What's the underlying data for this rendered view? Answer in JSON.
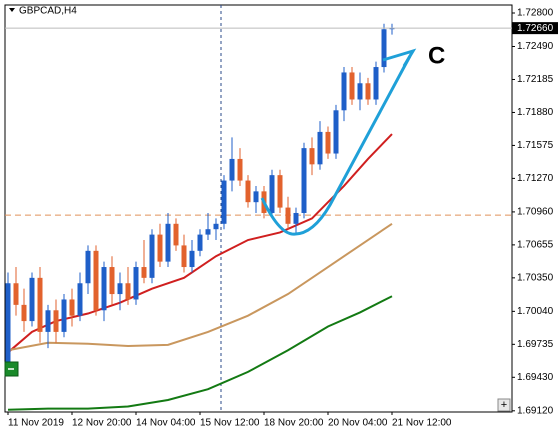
{
  "chart_data": {
    "type": "candlestick",
    "title": "GBPCAD,H4",
    "categories": [
      "11 Nov 2019",
      null,
      null,
      null,
      null,
      null,
      null,
      null,
      "12 Nov 20:00",
      null,
      null,
      null,
      null,
      null,
      null,
      null,
      "14 Nov 04:00",
      null,
      null,
      null,
      null,
      null,
      null,
      null,
      "15 Nov 12:00",
      null,
      null,
      null,
      null,
      null,
      null,
      null,
      "18 Nov 20:00",
      null,
      null,
      null,
      null,
      null,
      null,
      null,
      "20 Nov 04:00",
      null,
      null,
      null,
      null,
      null,
      null,
      null,
      "21 Nov 12:00"
    ],
    "open": [
      1.6955,
      1.703,
      1.701,
      1.6995,
      1.7035,
      1.6985,
      1.7005,
      1.6985,
      1.7015,
      1.7,
      1.703,
      1.706,
      1.7005,
      1.7045,
      1.702,
      1.703,
      1.7015,
      1.7045,
      1.7035,
      1.7075,
      1.705,
      1.7085,
      1.7065,
      1.7045,
      1.706,
      1.7075,
      1.708,
      1.7085,
      1.7125,
      1.7145,
      1.7125,
      1.7105,
      1.7115,
      1.7095,
      1.713,
      1.71,
      1.7085,
      1.7095,
      1.7155,
      1.714,
      1.717,
      1.715,
      1.719,
      1.7225,
      1.72,
      1.7215,
      1.72,
      1.723,
      1.7265
    ],
    "high": [
      1.704,
      1.7045,
      1.7025,
      1.704,
      1.7045,
      1.701,
      1.7015,
      1.702,
      1.7025,
      1.704,
      1.7065,
      1.7065,
      1.705,
      1.7055,
      1.704,
      1.7045,
      1.705,
      1.707,
      1.708,
      1.7085,
      1.7095,
      1.709,
      1.7075,
      1.707,
      1.708,
      1.7095,
      1.709,
      1.713,
      1.7165,
      1.7155,
      1.713,
      1.712,
      1.712,
      1.7135,
      1.7135,
      1.711,
      1.71,
      1.716,
      1.7165,
      1.718,
      1.7175,
      1.7195,
      1.723,
      1.723,
      1.7225,
      1.722,
      1.7235,
      1.727,
      1.727
    ],
    "low": [
      1.695,
      1.7,
      1.6985,
      1.699,
      1.6975,
      1.697,
      1.6975,
      1.698,
      1.699,
      1.6995,
      1.702,
      1.7,
      1.6995,
      1.701,
      1.7005,
      1.701,
      1.701,
      1.703,
      1.703,
      1.7045,
      1.7045,
      1.706,
      1.704,
      1.704,
      1.7055,
      1.707,
      1.707,
      1.708,
      1.7115,
      1.712,
      1.71,
      1.7095,
      1.709,
      1.709,
      1.7095,
      1.708,
      1.7075,
      1.709,
      1.713,
      1.7135,
      1.7145,
      1.7145,
      1.718,
      1.7195,
      1.719,
      1.7195,
      1.7195,
      1.7225,
      1.726
    ],
    "close": [
      1.703,
      1.701,
      1.6995,
      1.7035,
      1.6985,
      1.7005,
      1.6985,
      1.7015,
      1.7,
      1.703,
      1.706,
      1.7005,
      1.7045,
      1.702,
      1.703,
      1.7015,
      1.7045,
      1.7035,
      1.7075,
      1.705,
      1.7085,
      1.7065,
      1.7045,
      1.706,
      1.7075,
      1.708,
      1.7085,
      1.7125,
      1.7145,
      1.7125,
      1.7105,
      1.7115,
      1.7095,
      1.713,
      1.71,
      1.7085,
      1.7095,
      1.7155,
      1.714,
      1.717,
      1.715,
      1.719,
      1.7225,
      1.72,
      1.7215,
      1.72,
      1.723,
      1.7265,
      1.7266
    ],
    "up_color": "#1f5fc8",
    "down_color": "#e2622d",
    "overlays": [
      {
        "color": "#d01f1f",
        "x": [
          0,
          3,
          6,
          10,
          14,
          18,
          22,
          26,
          30,
          34,
          38,
          42,
          45,
          48
        ],
        "values": [
          1.6966,
          1.6985,
          1.6995,
          1.7002,
          1.7012,
          1.7025,
          1.7035,
          1.7055,
          1.707,
          1.7077,
          1.709,
          1.712,
          1.7145,
          1.7168
        ]
      },
      {
        "color": "#c9975e",
        "x": [
          0,
          5,
          10,
          15,
          20,
          25,
          30,
          35,
          40,
          44,
          48
        ],
        "values": [
          1.6968,
          1.6975,
          1.6974,
          1.6972,
          1.6973,
          1.6985,
          1.7,
          1.702,
          1.7045,
          1.7065,
          1.7085
        ]
      },
      {
        "color": "#137a13",
        "x": [
          0,
          5,
          10,
          15,
          20,
          25,
          30,
          35,
          40,
          44,
          48
        ],
        "values": [
          1.6913,
          1.6914,
          1.6914,
          1.6916,
          1.6922,
          1.6932,
          1.6948,
          1.6968,
          1.699,
          1.7003,
          1.7018
        ]
      }
    ],
    "hline": 1.7093,
    "current_price": {
      "value": 1.7266,
      "label": "1.72660"
    },
    "annotation": "C",
    "ylim": [
      1.69109,
      1.72874
    ],
    "yticks": [
      {
        "value": 1.728,
        "label": "1.72800"
      },
      {
        "value": 1.7249,
        "label": "1.72490"
      },
      {
        "value": 1.72185,
        "label": "1.72185"
      },
      {
        "value": 1.7188,
        "label": "1.71880"
      },
      {
        "value": 1.71575,
        "label": "1.71575"
      },
      {
        "value": 1.7127,
        "label": "1.71270"
      },
      {
        "value": 1.7096,
        "label": "1.70960"
      },
      {
        "value": 1.70655,
        "label": "1.70655"
      },
      {
        "value": 1.7035,
        "label": "1.70350"
      },
      {
        "value": 1.7004,
        "label": "1.70040"
      },
      {
        "value": 1.69735,
        "label": "1.69735"
      },
      {
        "value": 1.6943,
        "label": "1.69430"
      },
      {
        "value": 1.6912,
        "label": "1.69120"
      }
    ]
  }
}
